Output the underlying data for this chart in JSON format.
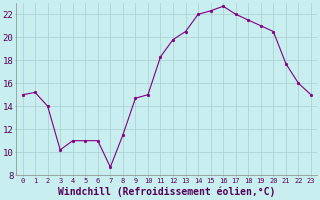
{
  "x": [
    0,
    1,
    2,
    3,
    4,
    5,
    6,
    7,
    8,
    9,
    10,
    11,
    12,
    13,
    14,
    15,
    16,
    17,
    18,
    19,
    20,
    21,
    22,
    23
  ],
  "y": [
    15.0,
    15.2,
    14.0,
    10.2,
    11.0,
    11.0,
    11.0,
    8.7,
    11.5,
    14.7,
    15.0,
    18.3,
    19.8,
    20.5,
    22.0,
    22.3,
    22.7,
    22.0,
    21.5,
    21.0,
    20.5,
    17.7,
    16.0,
    15.0
  ],
  "ylim": [
    8,
    23
  ],
  "yticks": [
    8,
    10,
    12,
    14,
    16,
    18,
    20,
    22
  ],
  "line_color": "#800080",
  "marker": "o",
  "marker_size": 2.0,
  "bg_color": "#c8eef0",
  "grid_color": "#aacccc",
  "xlabel": "Windchill (Refroidissement éolien,°C)",
  "xlabel_fontsize": 7,
  "tick_fontsize": 6.5,
  "figsize": [
    3.2,
    2.0
  ],
  "dpi": 100
}
